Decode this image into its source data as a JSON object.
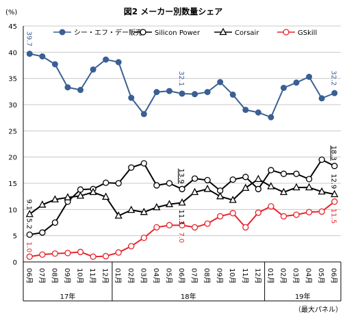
{
  "chart_data": {
    "type": "line",
    "title": "図2 メーカー別数量シェア",
    "y_unit_label": "(%)",
    "ylim": [
      0,
      45
    ],
    "y_ticks": [
      0,
      5,
      10,
      15,
      20,
      25,
      30,
      35,
      40,
      45
    ],
    "grid": true,
    "legend_position": "top",
    "note": "（最大パネル）",
    "categories": [
      "06月",
      "07月",
      "08月",
      "09月",
      "10月",
      "11月",
      "12月",
      "01月",
      "02月",
      "03月",
      "04月",
      "05月",
      "06月",
      "07月",
      "08月",
      "09月",
      "10月",
      "11月",
      "12月",
      "01月",
      "02月",
      "03月",
      "04月",
      "05月",
      "06月"
    ],
    "year_groups": [
      {
        "label": "17年",
        "start": 0,
        "end": 6
      },
      {
        "label": "18年",
        "start": 7,
        "end": 18
      },
      {
        "label": "19年",
        "start": 19,
        "end": 24
      }
    ],
    "series": [
      {
        "name": "シー・エフ・デー販売",
        "color": "#3a5f94",
        "marker": "filled-circle",
        "values": [
          39.7,
          39.2,
          37.7,
          33.3,
          32.8,
          36.7,
          38.6,
          38.1,
          31.3,
          28.2,
          32.4,
          32.6,
          32.1,
          32.0,
          32.4,
          34.3,
          31.9,
          29.0,
          28.5,
          27.6,
          33.2,
          34.2,
          35.3,
          31.2,
          32.2
        ],
        "labels": [
          {
            "index": 0,
            "text": "39.7"
          },
          {
            "index": 12,
            "text": "32.1"
          },
          {
            "index": 24,
            "text": "32.2"
          }
        ]
      },
      {
        "name": "Silicon Power",
        "color": "#000000",
        "marker": "open-circle",
        "values": [
          5.2,
          5.6,
          7.5,
          11.5,
          13.8,
          13.9,
          15.1,
          15.0,
          18.0,
          18.8,
          14.6,
          15.0,
          13.9,
          15.9,
          15.6,
          13.6,
          15.7,
          16.2,
          13.9,
          17.5,
          16.8,
          16.8,
          15.8,
          19.5,
          18.3
        ],
        "labels": [
          {
            "index": 0,
            "text": "5.2"
          },
          {
            "index": 12,
            "text": "13.9"
          },
          {
            "index": 24,
            "text": "18.3"
          }
        ]
      },
      {
        "name": "Corsair",
        "color": "#000000",
        "marker": "open-triangle",
        "values": [
          9.1,
          10.9,
          11.9,
          12.3,
          12.6,
          13.3,
          12.4,
          8.8,
          9.9,
          9.5,
          10.4,
          11.0,
          11.3,
          13.3,
          13.9,
          12.5,
          11.8,
          14.1,
          15.8,
          14.4,
          13.3,
          14.2,
          14.2,
          13.4,
          12.9
        ],
        "labels": [
          {
            "index": 0,
            "text": "9.1"
          },
          {
            "index": 12,
            "text": "11.3"
          },
          {
            "index": 24,
            "text": "12.9"
          }
        ]
      },
      {
        "name": "GSkill",
        "color": "#e8232a",
        "marker": "open-circle",
        "values": [
          1.0,
          1.4,
          1.6,
          1.7,
          1.9,
          1.0,
          1.1,
          1.8,
          3.0,
          4.6,
          6.6,
          7.0,
          7.0,
          6.6,
          7.3,
          8.7,
          9.3,
          6.6,
          9.4,
          10.6,
          8.7,
          9.0,
          9.5,
          9.6,
          11.5
        ],
        "labels": [
          {
            "index": 0,
            "text": "1.0"
          },
          {
            "index": 12,
            "text": "7.0"
          },
          {
            "index": 24,
            "text": "11.5"
          }
        ]
      }
    ]
  }
}
